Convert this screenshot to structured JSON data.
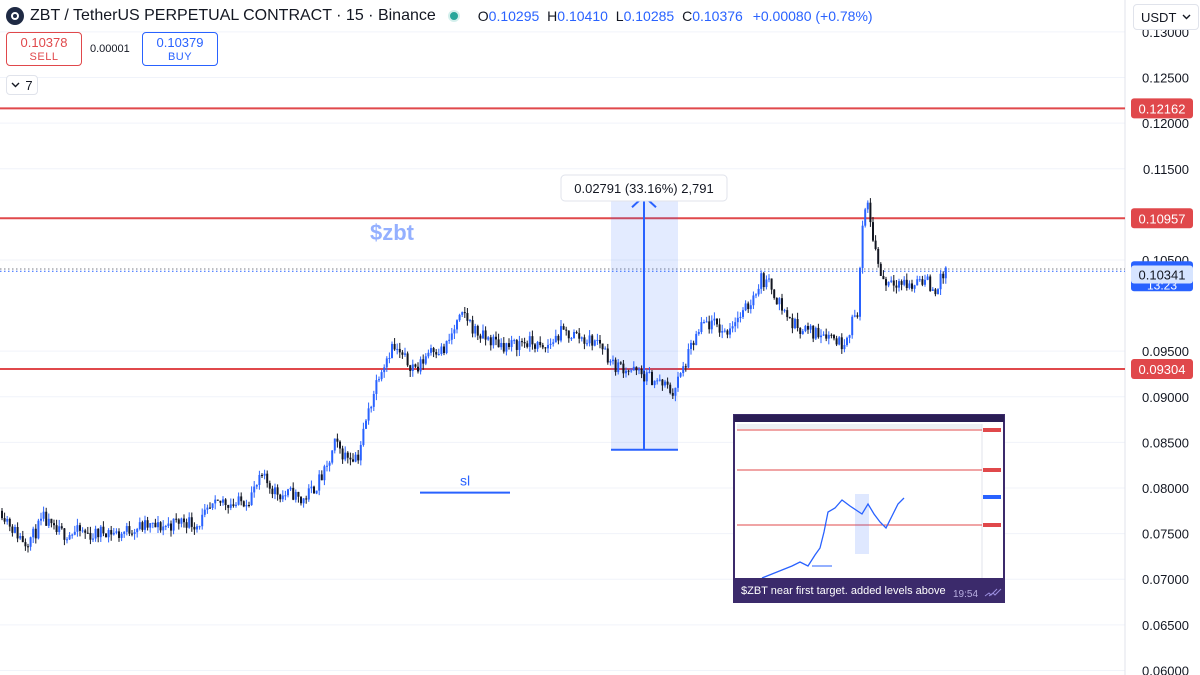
{
  "header": {
    "title": "ZBT / TetherUS PERPETUAL CONTRACT · 15 · Binance",
    "ohlc": {
      "o_label": "O",
      "o": "0.10295",
      "h_label": "H",
      "h": "0.10410",
      "l_label": "L",
      "l": "0.10285",
      "c_label": "C",
      "c": "0.10376",
      "change": "+0.00080 (+0.78%)"
    }
  },
  "trade": {
    "sell_price": "0.10378",
    "sell_label": "SELL",
    "spread": "0.00001",
    "buy_price": "0.10379",
    "buy_label": "BUY"
  },
  "indicators_toggle": {
    "count": "7"
  },
  "currency_selector": {
    "value": "USDT"
  },
  "colors": {
    "up": "#2962ff",
    "down": "#131722",
    "level": "#e0484b",
    "accent": "#2962ff"
  },
  "chart_data": {
    "type": "candlestick",
    "symbol": "ZBT / TetherUS PERPETUAL CONTRACT",
    "interval": "15",
    "exchange": "Binance",
    "y_axis": {
      "range": [
        0.0595,
        0.1335
      ],
      "ticks": [
        "0.13000",
        "0.12500",
        "0.12000",
        "0.11500",
        "0.10500",
        "0.09500",
        "0.09000",
        "0.08500",
        "0.08000",
        "0.07500",
        "0.07000",
        "0.06500",
        "0.06000"
      ]
    },
    "price_path": [
      [
        0,
        0.0775
      ],
      [
        5,
        0.0752
      ],
      [
        9,
        0.0741
      ],
      [
        12,
        0.0748
      ],
      [
        16,
        0.0766
      ],
      [
        20,
        0.0752
      ],
      [
        25,
        0.075
      ],
      [
        30,
        0.0752
      ],
      [
        35,
        0.0748
      ],
      [
        40,
        0.0754
      ],
      [
        45,
        0.0749
      ],
      [
        50,
        0.0756
      ],
      [
        55,
        0.0758
      ],
      [
        60,
        0.0757
      ],
      [
        65,
        0.076
      ],
      [
        70,
        0.0765
      ],
      [
        75,
        0.076
      ],
      [
        80,
        0.0775
      ],
      [
        85,
        0.0786
      ],
      [
        90,
        0.0782
      ],
      [
        95,
        0.0789
      ],
      [
        100,
        0.0811
      ],
      [
        105,
        0.0797
      ],
      [
        108,
        0.0792
      ],
      [
        112,
        0.0794
      ],
      [
        115,
        0.0785
      ],
      [
        120,
        0.08
      ],
      [
        125,
        0.082
      ],
      [
        128,
        0.0848
      ],
      [
        132,
        0.0835
      ],
      [
        137,
        0.0836
      ],
      [
        140,
        0.0873
      ],
      [
        145,
        0.0927
      ],
      [
        150,
        0.0955
      ],
      [
        155,
        0.094
      ],
      [
        160,
        0.093
      ],
      [
        165,
        0.0955
      ],
      [
        170,
        0.095
      ],
      [
        175,
        0.098
      ],
      [
        178,
        0.099
      ],
      [
        182,
        0.0972
      ],
      [
        185,
        0.0965
      ],
      [
        190,
        0.096
      ],
      [
        195,
        0.0955
      ],
      [
        200,
        0.096
      ],
      [
        205,
        0.0958
      ],
      [
        208,
        0.095
      ],
      [
        212,
        0.0962
      ],
      [
        215,
        0.097
      ],
      [
        220,
        0.0968
      ],
      [
        225,
        0.0962
      ],
      [
        230,
        0.096
      ],
      [
        235,
        0.0935
      ],
      [
        240,
        0.0932
      ],
      [
        245,
        0.0925
      ],
      [
        250,
        0.092
      ],
      [
        255,
        0.0912
      ],
      [
        258,
        0.0905
      ],
      [
        262,
        0.093
      ],
      [
        266,
        0.096
      ],
      [
        270,
        0.098
      ],
      [
        275,
        0.0978
      ],
      [
        278,
        0.097
      ],
      [
        282,
        0.0985
      ],
      [
        285,
        0.099
      ],
      [
        288,
        0.1005
      ],
      [
        292,
        0.103
      ],
      [
        296,
        0.102
      ],
      [
        300,
        0.0998
      ],
      [
        304,
        0.098
      ],
      [
        308,
        0.0975
      ],
      [
        312,
        0.097
      ],
      [
        316,
        0.0972
      ],
      [
        320,
        0.0965
      ],
      [
        323,
        0.0958
      ],
      [
        326,
        0.0975
      ],
      [
        329,
        0.0995
      ],
      [
        331,
        0.1085
      ],
      [
        333,
        0.111
      ],
      [
        336,
        0.106
      ],
      [
        338,
        0.1035
      ],
      [
        340,
        0.1025
      ],
      [
        342,
        0.103
      ],
      [
        346,
        0.1025
      ],
      [
        350,
        0.102
      ],
      [
        353,
        0.1032
      ],
      [
        356,
        0.1025
      ],
      [
        358,
        0.1015
      ],
      [
        360,
        0.1022
      ],
      [
        363,
        0.1038
      ]
    ],
    "price_levels": [
      {
        "value": 0.12162,
        "label": "0.12162"
      },
      {
        "value": 0.10957,
        "label": "0.10957"
      },
      {
        "value": 0.09304,
        "label": "0.09304"
      }
    ],
    "current_price": {
      "value": 0.10376,
      "label": "0.10376",
      "countdown": "13:23"
    },
    "ask_line": {
      "value": 0.10379
    },
    "crosshair_price": {
      "value": 0.10341,
      "label": "0.10341"
    },
    "annotations": {
      "chart_label": "$zbt",
      "stop_loss": {
        "text": "sl",
        "price": 0.0795
      },
      "measure": {
        "label": "0.02791 (33.16%) 2,791",
        "from": 0.0842,
        "to": 0.1121
      }
    },
    "inset": {
      "caption": "$ZBT near first target. added levels above",
      "time": "19:54"
    }
  }
}
